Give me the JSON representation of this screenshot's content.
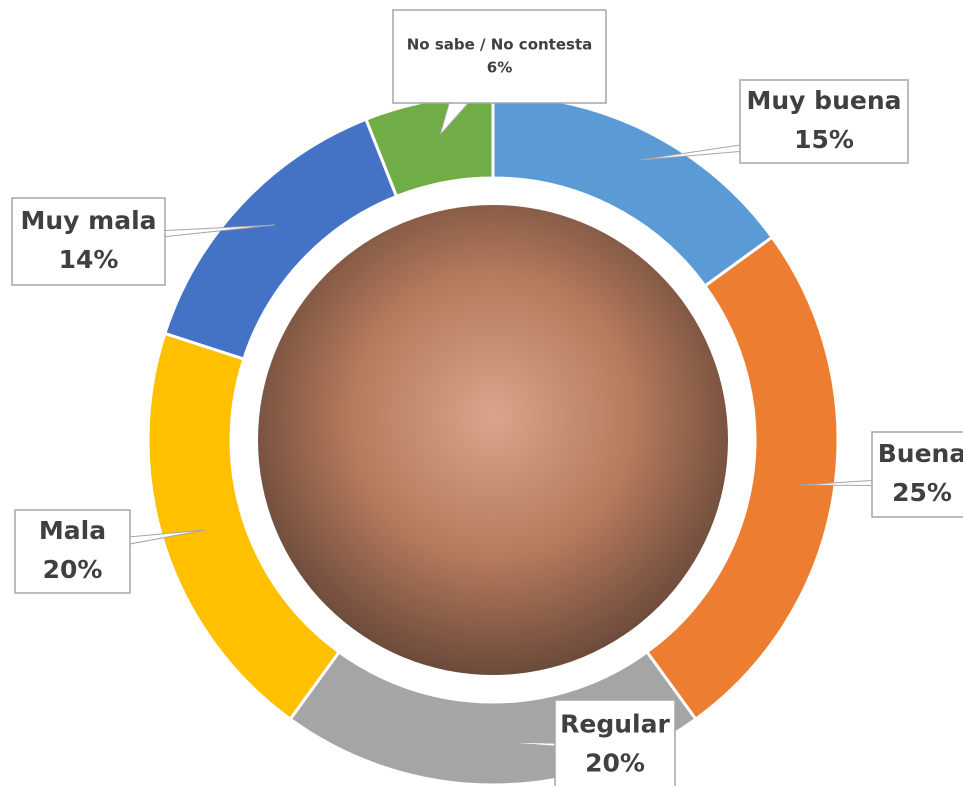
{
  "chart_data": {
    "type": "donut",
    "categories": [
      "Muy buena",
      "Buena",
      "Regular",
      "Mala",
      "Muy mala",
      "No sabe / No contesta"
    ],
    "values": [
      15,
      25,
      20,
      20,
      14,
      6
    ],
    "value_labels": [
      "15%",
      "25%",
      "20%",
      "20%",
      "14%",
      "6%"
    ],
    "colors": [
      "#5b9bd5",
      "#ed7d31",
      "#a5a5a5",
      "#ffc000",
      "#4472c4",
      "#70ad47"
    ]
  }
}
